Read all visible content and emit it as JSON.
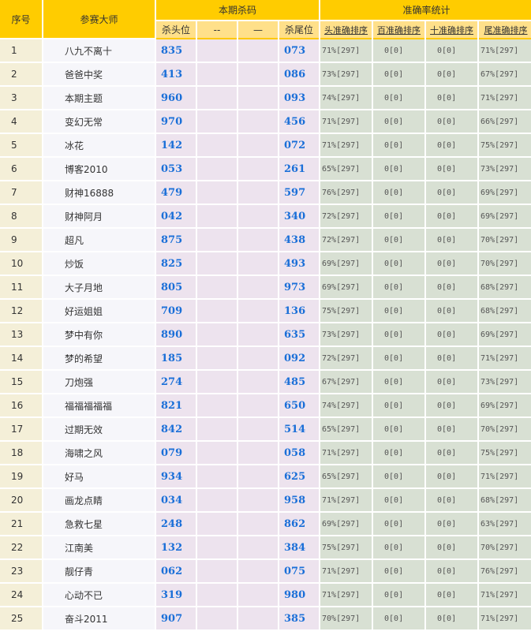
{
  "header": {
    "index": "序号",
    "master": "参赛大师",
    "kill_group": "本期杀码",
    "stats_group": "准确率统计",
    "kill_cols": [
      "杀头位",
      "--",
      "—",
      "杀尾位"
    ],
    "stat_cols": [
      "头准确排序",
      "百准确排序",
      "十准确排序",
      "尾准确排序"
    ]
  },
  "rows": [
    {
      "idx": "1",
      "name": "八九不离十",
      "head": "835",
      "tail": "073",
      "s": [
        "71%[297]",
        "0[0]",
        "0[0]",
        "71%[297]"
      ]
    },
    {
      "idx": "2",
      "name": "爸爸中奖",
      "head": "413",
      "tail": "086",
      "s": [
        "73%[297]",
        "0[0]",
        "0[0]",
        "67%[297]"
      ]
    },
    {
      "idx": "3",
      "name": "本期主题",
      "head": "960",
      "tail": "093",
      "s": [
        "74%[297]",
        "0[0]",
        "0[0]",
        "71%[297]"
      ]
    },
    {
      "idx": "4",
      "name": "变幻无常",
      "head": "970",
      "tail": "456",
      "s": [
        "71%[297]",
        "0[0]",
        "0[0]",
        "66%[297]"
      ]
    },
    {
      "idx": "5",
      "name": "冰花",
      "head": "142",
      "tail": "072",
      "s": [
        "71%[297]",
        "0[0]",
        "0[0]",
        "75%[297]"
      ]
    },
    {
      "idx": "6",
      "name": "博客2010",
      "head": "053",
      "tail": "261",
      "s": [
        "65%[297]",
        "0[0]",
        "0[0]",
        "73%[297]"
      ]
    },
    {
      "idx": "7",
      "name": "财神16888",
      "head": "479",
      "tail": "597",
      "s": [
        "76%[297]",
        "0[0]",
        "0[0]",
        "69%[297]"
      ]
    },
    {
      "idx": "8",
      "name": "财神阿月",
      "head": "042",
      "tail": "340",
      "s": [
        "72%[297]",
        "0[0]",
        "0[0]",
        "69%[297]"
      ]
    },
    {
      "idx": "9",
      "name": "超凡",
      "head": "875",
      "tail": "438",
      "s": [
        "72%[297]",
        "0[0]",
        "0[0]",
        "70%[297]"
      ]
    },
    {
      "idx": "10",
      "name": "炒饭",
      "head": "825",
      "tail": "493",
      "s": [
        "69%[297]",
        "0[0]",
        "0[0]",
        "70%[297]"
      ]
    },
    {
      "idx": "11",
      "name": "大子月地",
      "head": "805",
      "tail": "973",
      "s": [
        "69%[297]",
        "0[0]",
        "0[0]",
        "68%[297]"
      ]
    },
    {
      "idx": "12",
      "name": "好运姐姐",
      "head": "709",
      "tail": "136",
      "s": [
        "75%[297]",
        "0[0]",
        "0[0]",
        "68%[297]"
      ]
    },
    {
      "idx": "13",
      "name": "梦中有你",
      "head": "890",
      "tail": "635",
      "s": [
        "73%[297]",
        "0[0]",
        "0[0]",
        "69%[297]"
      ]
    },
    {
      "idx": "14",
      "name": "梦的希望",
      "head": "185",
      "tail": "092",
      "s": [
        "72%[297]",
        "0[0]",
        "0[0]",
        "71%[297]"
      ]
    },
    {
      "idx": "15",
      "name": "刀炮强",
      "head": "274",
      "tail": "485",
      "s": [
        "67%[297]",
        "0[0]",
        "0[0]",
        "73%[297]"
      ]
    },
    {
      "idx": "16",
      "name": "福福福福福",
      "head": "821",
      "tail": "650",
      "s": [
        "74%[297]",
        "0[0]",
        "0[0]",
        "69%[297]"
      ]
    },
    {
      "idx": "17",
      "name": "过期无效",
      "head": "842",
      "tail": "514",
      "s": [
        "65%[297]",
        "0[0]",
        "0[0]",
        "70%[297]"
      ]
    },
    {
      "idx": "18",
      "name": "海啸之风",
      "head": "079",
      "tail": "058",
      "s": [
        "71%[297]",
        "0[0]",
        "0[0]",
        "75%[297]"
      ]
    },
    {
      "idx": "19",
      "name": "好马",
      "head": "934",
      "tail": "625",
      "s": [
        "65%[297]",
        "0[0]",
        "0[0]",
        "71%[297]"
      ]
    },
    {
      "idx": "20",
      "name": "画龙点睛",
      "head": "034",
      "tail": "958",
      "s": [
        "71%[297]",
        "0[0]",
        "0[0]",
        "68%[297]"
      ]
    },
    {
      "idx": "21",
      "name": "急救七星",
      "head": "248",
      "tail": "862",
      "s": [
        "69%[297]",
        "0[0]",
        "0[0]",
        "63%[297]"
      ]
    },
    {
      "idx": "22",
      "name": "江南美",
      "head": "132",
      "tail": "384",
      "s": [
        "75%[297]",
        "0[0]",
        "0[0]",
        "70%[297]"
      ]
    },
    {
      "idx": "23",
      "name": "靓仔青",
      "head": "062",
      "tail": "075",
      "s": [
        "71%[297]",
        "0[0]",
        "0[0]",
        "76%[297]"
      ]
    },
    {
      "idx": "24",
      "name": "心动不已",
      "head": "319",
      "tail": "980",
      "s": [
        "71%[297]",
        "0[0]",
        "0[0]",
        "71%[297]"
      ]
    },
    {
      "idx": "25",
      "name": "奋斗2011",
      "head": "907",
      "tail": "385",
      "s": [
        "70%[297]",
        "0[0]",
        "0[0]",
        "71%[297]"
      ]
    }
  ]
}
